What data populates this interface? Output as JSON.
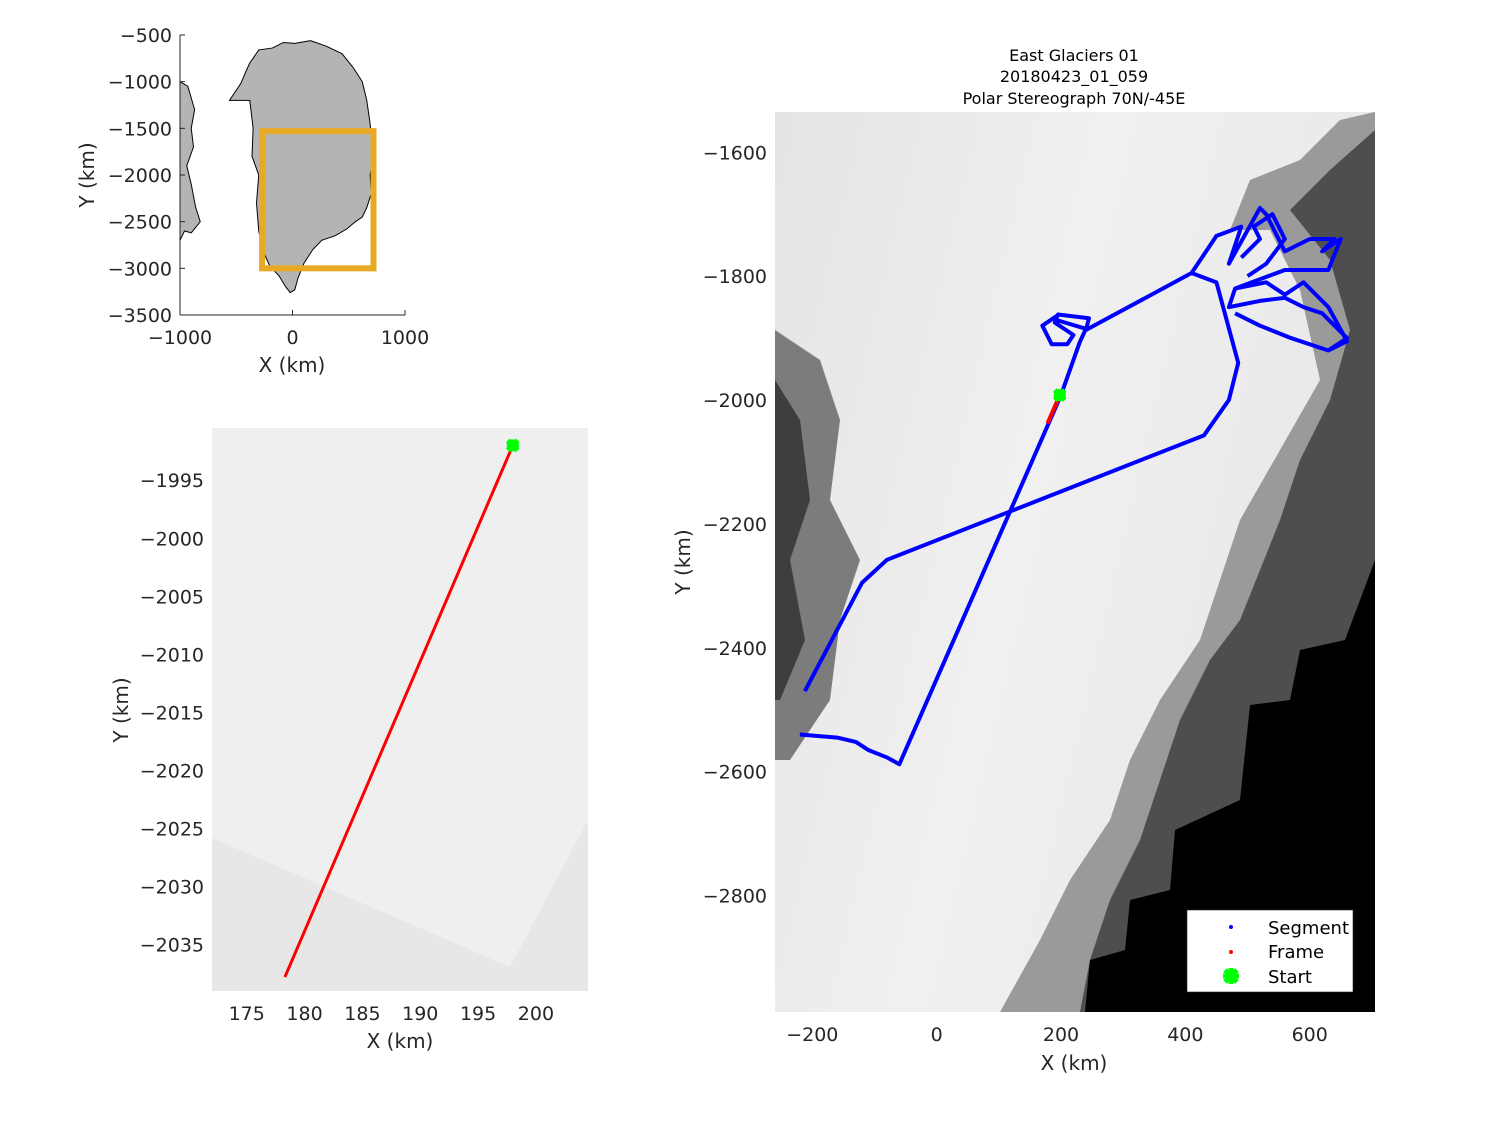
{
  "chart_data": [
    {
      "type": "map",
      "xlabel": "X (km)",
      "ylabel": "Y (km)",
      "xlim": [
        -1000,
        1000
      ],
      "ylim": [
        -3500,
        -500
      ],
      "xticks": [
        -1000,
        0,
        1000
      ],
      "yticks": [
        -500,
        -1000,
        -1500,
        -2000,
        -2500,
        -3000,
        -3500
      ],
      "land_color": "#b4b4b4",
      "box_color": "#e8aa24",
      "region_box": {
        "x": [
          -270,
          720
        ],
        "y": [
          -1530,
          -3000
        ]
      },
      "greenland_outline": {
        "x": [
          -380,
          -300,
          -180,
          -80,
          20,
          160,
          300,
          440,
          540,
          620,
          660,
          690,
          700,
          720,
          690,
          700,
          660,
          620,
          560,
          480,
          380,
          260,
          180,
          100,
          50,
          20,
          -20,
          -60,
          -120,
          -200,
          -260,
          -300,
          -320,
          -300,
          -360,
          -350,
          -380,
          -560,
          -460,
          -410
        ],
        "y": [
          -800,
          -660,
          -640,
          -580,
          -590,
          -560,
          -620,
          -700,
          -850,
          -1000,
          -1200,
          -1450,
          -1600,
          -1800,
          -2000,
          -2200,
          -2350,
          -2450,
          -2500,
          -2580,
          -2650,
          -2700,
          -2800,
          -2950,
          -3100,
          -3230,
          -3260,
          -3200,
          -3080,
          -2980,
          -2820,
          -2600,
          -2300,
          -2000,
          -1800,
          -1500,
          -1200,
          -1200,
          -1020,
          -880
        ]
      },
      "west_coast_outline": {
        "x": [
          -1000,
          -930,
          -870,
          -900,
          -880,
          -940,
          -900,
          -860,
          -820,
          -900,
          -960,
          -1000
        ],
        "y": [
          -1000,
          -1050,
          -1300,
          -1500,
          -1700,
          -1900,
          -2100,
          -2350,
          -2500,
          -2620,
          -2600,
          -2700
        ]
      }
    },
    {
      "type": "line",
      "xlabel": "X (km)",
      "ylabel": "Y (km)",
      "xlim": [
        172,
        204.5
      ],
      "ylim": [
        -2039,
        -1990.5
      ],
      "xticks": [
        175,
        180,
        185,
        190,
        195,
        200
      ],
      "yticks": [
        -1995,
        -2000,
        -2005,
        -2010,
        -2015,
        -2020,
        -2025,
        -2030,
        -2035
      ],
      "series": [
        {
          "name": "Frame",
          "color": "#ff0000",
          "x": [
            178.3,
            198.0
          ],
          "y": [
            -2037.8,
            -1992.0
          ]
        },
        {
          "name": "Start",
          "color": "#00ff00",
          "x": [
            198.0
          ],
          "y": [
            -1992.0
          ]
        }
      ]
    },
    {
      "type": "line",
      "title": [
        "East Glaciers 01",
        "20180423_01_059",
        "Polar Stereograph 70N/-45E"
      ],
      "xlabel": "X (km)",
      "ylabel": "Y (km)",
      "xlim": [
        -260,
        705
      ],
      "ylim": [
        -2988,
        -1535
      ],
      "xticks": [
        -200,
        0,
        200,
        400,
        600
      ],
      "yticks": [
        -1600,
        -1800,
        -2000,
        -2200,
        -2400,
        -2600,
        -2800
      ],
      "legend_position": "bottom-right",
      "series": [
        {
          "name": "Segment",
          "color": "#0000ff",
          "x": [
            -212,
            -120,
            -80,
            430,
            470,
            485,
            450,
            410,
            240,
            245,
            195,
            190,
            220,
            210,
            185,
            170,
            195,
            190,
            240,
            230,
            200,
            -60,
            -80,
            -110,
            -130,
            -160,
            -220
          ],
          "y": [
            -2470,
            -2295,
            -2258,
            -2057,
            -2000,
            -1940,
            -1810,
            -1795,
            -1887,
            -1868,
            -1862,
            -1875,
            -1895,
            -1910,
            -1910,
            -1880,
            -1863,
            -1870,
            -1885,
            -1907,
            -1992,
            -2588,
            -2577,
            -2565,
            -2552,
            -2545,
            -2540
          ]
        },
        {
          "name": "Segment",
          "color": "#0000ff",
          "x": [
            410,
            450,
            490,
            480,
            470,
            520,
            530,
            560,
            600,
            640,
            620,
            650,
            630,
            560,
            480,
            470,
            520,
            560,
            590,
            620,
            660,
            630
          ],
          "y": [
            -1795,
            -1735,
            -1720,
            -1750,
            -1780,
            -1690,
            -1700,
            -1760,
            -1740,
            -1740,
            -1760,
            -1740,
            -1790,
            -1790,
            -1820,
            -1850,
            -1840,
            -1835,
            -1850,
            -1860,
            -1900,
            -1920
          ]
        },
        {
          "name": "Segment",
          "color": "#0000ff",
          "x": [
            480,
            530,
            560,
            590,
            630,
            660,
            630,
            570,
            520,
            480
          ],
          "y": [
            -1820,
            -1810,
            -1830,
            -1810,
            -1850,
            -1905,
            -1920,
            -1900,
            -1880,
            -1860
          ]
        },
        {
          "name": "Segment",
          "color": "#0000ff",
          "x": [
            490,
            520,
            510,
            540,
            560,
            530,
            500
          ],
          "y": [
            -1770,
            -1740,
            -1720,
            -1700,
            -1740,
            -1780,
            -1800
          ]
        },
        {
          "name": "Frame",
          "color": "#ff0000",
          "x": [
            178.3,
            198.0
          ],
          "y": [
            -2037.8,
            -1992.0
          ]
        },
        {
          "name": "Start",
          "color": "#00ff00",
          "x": [
            198.0
          ],
          "y": [
            -1992.0
          ]
        }
      ]
    }
  ]
}
